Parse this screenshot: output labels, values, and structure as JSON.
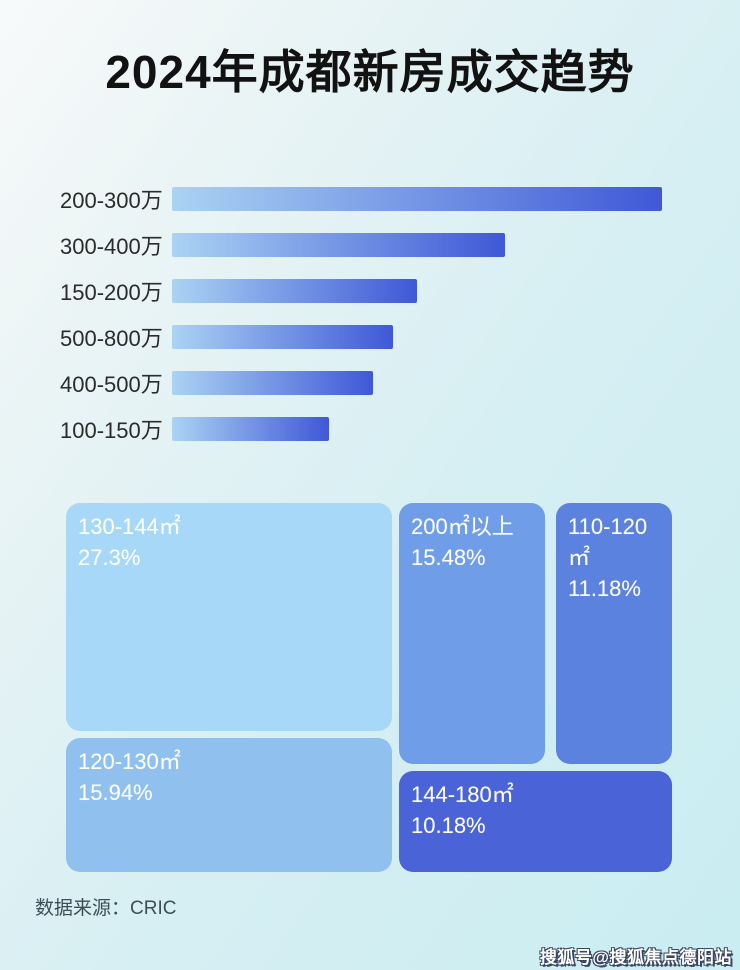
{
  "title": "2024年成都新房成交趋势",
  "colors": {
    "bar_gradient_left": "#abd3f3",
    "bar_gradient_right": "#3f58d7",
    "background_top_left": "#f8fafa",
    "background_bottom_right": "#c9edf2",
    "label_text": "#2b2b2b",
    "treemap_text": "#ffffff"
  },
  "chart_data": [
    {
      "type": "bar",
      "orientation": "horizontal",
      "title": "",
      "categories": [
        "200-300万",
        "300-400万",
        "150-200万",
        "500-800万",
        "400-500万",
        "100-150万"
      ],
      "values_relative_pct_of_max": [
        100,
        68,
        50,
        45,
        41,
        32
      ],
      "value_labels": [],
      "axis_ticks_shown": false,
      "grid": false
    },
    {
      "type": "treemap",
      "title": "",
      "blocks": [
        {
          "label": "130-144㎡",
          "value_pct": 27.3,
          "value_label": "27.3%",
          "color": "#a7d8f7"
        },
        {
          "label": "120-130㎡",
          "value_pct": 15.94,
          "value_label": "15.94%",
          "color": "#8fc0ee"
        },
        {
          "label": "200㎡以上",
          "value_pct": 15.48,
          "value_label": "15.48%",
          "color": "#6f9de8"
        },
        {
          "label": "110-120㎡",
          "value_pct": 11.18,
          "value_label": "11.18%",
          "color": "#5b82de"
        },
        {
          "label": "144-180㎡",
          "value_pct": 10.18,
          "value_label": "10.18%",
          "color": "#4a63d6"
        }
      ]
    }
  ],
  "footer": {
    "source_label": "数据来源：CRIC"
  },
  "watermark": {
    "text": "搜狐号@搜狐焦点德阳站"
  }
}
